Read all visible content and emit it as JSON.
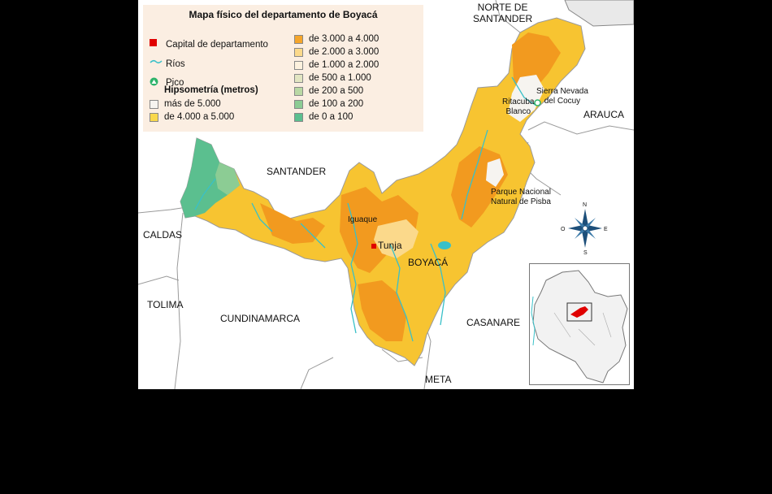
{
  "legend": {
    "title": "Mapa físico del departamento de Boyacá",
    "capital_label": "Capital de departamento",
    "rivers_label": "Ríos",
    "peak_label": "Pico",
    "hypsometry_title": "Hipsometría (metros)",
    "levels": [
      {
        "label": "más de 5.000",
        "color": "#f6f4f0"
      },
      {
        "label": "de 4.000 a 5.000",
        "color": "#f9d84c"
      },
      {
        "label": "de 3.000 a 4.000",
        "color": "#f5a52a"
      },
      {
        "label": "de 2.000 a 3.000",
        "color": "#fbd98b"
      },
      {
        "label": "de 1.000 a 2.000",
        "color": "#fdf1de"
      },
      {
        "label": "de 500 a 1.000",
        "color": "#e2e5c2"
      },
      {
        "label": "de 200 a 500",
        "color": "#b9d8a4"
      },
      {
        "label": "de 100 a 200",
        "color": "#8ccc94"
      },
      {
        "label": "de 0 a 100",
        "color": "#5bbf8f"
      }
    ]
  },
  "colors": {
    "capital": "#e00000",
    "river": "#39c0c8",
    "peak": "#2db36a",
    "department_base": "#f7c431",
    "high": "#f29a1f",
    "neighbor_fill": "#ffffff",
    "border": "#888888"
  },
  "neighbors": {
    "norte_santander_line1": "NORTE DE",
    "norte_santander_line2": "SANTANDER",
    "arauca": "ARAUCA",
    "santander": "SANTANDER",
    "caldas": "CALDAS",
    "tolima": "TOLIMA",
    "cundinamarca": "CUNDINAMARCA",
    "casanare": "CASANARE",
    "meta": "META"
  },
  "places": {
    "tunja": "Tunja",
    "boyaca": "BOYACÁ",
    "iguaque": "Iguaque",
    "ritacuba_line1": "Ritacuba",
    "ritacuba_line2": "Blanco",
    "cocuy_line1": "Sierra Nevada",
    "cocuy_line2": "del Cocuy",
    "pisba_line1": "Parque Nacional",
    "pisba_line2": "Natural de Pisba"
  },
  "compass": {
    "n": "N",
    "s": "S",
    "e": "E",
    "o": "O"
  },
  "icons": {
    "capital": "square-icon",
    "river": "river-line-icon",
    "peak": "peak-triangle-icon",
    "compass": "compass-rose-icon"
  }
}
